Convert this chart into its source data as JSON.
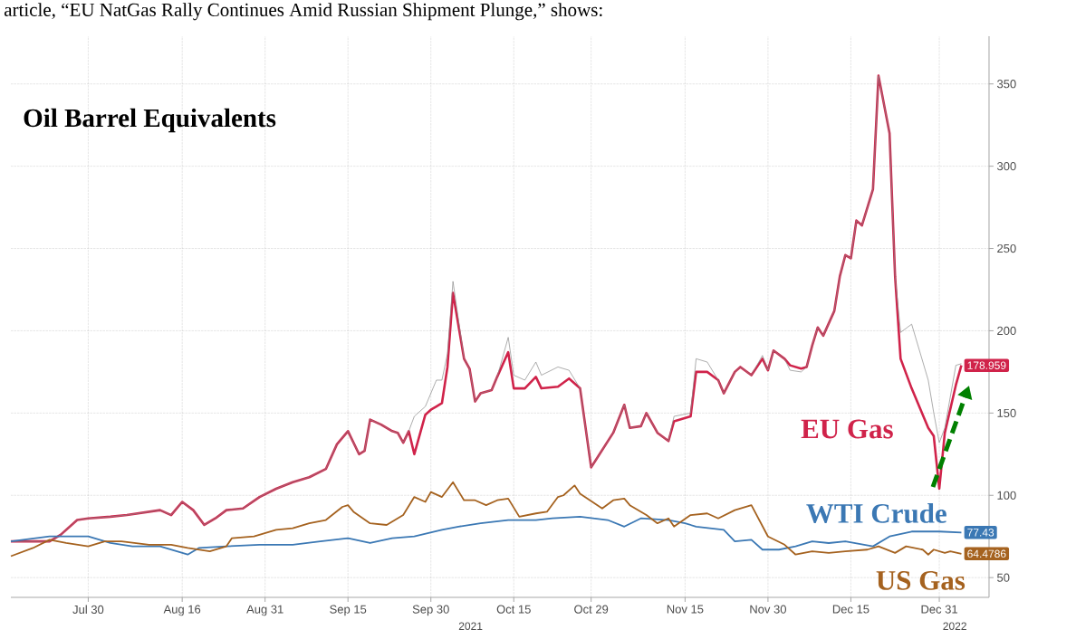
{
  "chart_data": {
    "type": "line",
    "title": "Oil Barrel Equivalents",
    "annotations": [
      "article, “EU NatGas Rally Continues Amid Russian Shipment Plunge,” shows:",
      "2021",
      "2022"
    ],
    "xlim": [
      "2021-07-16",
      "2022-01-09"
    ],
    "xticks": [
      {
        "value": "2021-07-30",
        "label": "Jul 30"
      },
      {
        "value": "2021-08-16",
        "label": "Aug 16"
      },
      {
        "value": "2021-08-31",
        "label": "Aug 31"
      },
      {
        "value": "2021-09-15",
        "label": "Sep 15"
      },
      {
        "value": "2021-09-30",
        "label": "Sep 30"
      },
      {
        "value": "2021-10-15",
        "label": "Oct 15"
      },
      {
        "value": "2021-10-29",
        "label": "Oct 29"
      },
      {
        "value": "2021-11-15",
        "label": "Nov 15"
      },
      {
        "value": "2021-11-30",
        "label": "Nov 30"
      },
      {
        "value": "2021-12-15",
        "label": "Dec 15"
      },
      {
        "value": "2021-12-31",
        "label": "Dec 31"
      }
    ],
    "ylim": [
      38,
      379
    ],
    "yticks": [
      50,
      100,
      150,
      200,
      250,
      300,
      350
    ],
    "grid": true,
    "line_style": "solid",
    "series": [
      {
        "name": "EU Gas",
        "color": "#d0234a",
        "x": [
          "2021-07-16",
          "2021-07-23",
          "2021-07-25",
          "2021-07-28",
          "2021-07-30",
          "2021-08-03",
          "2021-08-06",
          "2021-08-12",
          "2021-08-14",
          "2021-08-16",
          "2021-08-18",
          "2021-08-20",
          "2021-08-22",
          "2021-08-24",
          "2021-08-27",
          "2021-08-30",
          "2021-09-02",
          "2021-09-05",
          "2021-09-08",
          "2021-09-11",
          "2021-09-13",
          "2021-09-15",
          "2021-09-17",
          "2021-09-18",
          "2021-09-19",
          "2021-09-21",
          "2021-09-23",
          "2021-09-24",
          "2021-09-25",
          "2021-09-26",
          "2021-09-27",
          "2021-09-29",
          "2021-09-30",
          "2021-10-01",
          "2021-10-02",
          "2021-10-03",
          "2021-10-04",
          "2021-10-06",
          "2021-10-07",
          "2021-10-08",
          "2021-10-09",
          "2021-10-11",
          "2021-10-12",
          "2021-10-14",
          "2021-10-15",
          "2021-10-17",
          "2021-10-19",
          "2021-10-20",
          "2021-10-23",
          "2021-10-25",
          "2021-10-27",
          "2021-10-29",
          "2021-11-02",
          "2021-11-04",
          "2021-11-05",
          "2021-11-07",
          "2021-11-08",
          "2021-11-10",
          "2021-11-12",
          "2021-11-13",
          "2021-11-16",
          "2021-11-17",
          "2021-11-19",
          "2021-11-21",
          "2021-11-22",
          "2021-11-24",
          "2021-11-25",
          "2021-11-27",
          "2021-11-29",
          "2021-11-30",
          "2021-12-01",
          "2021-12-03",
          "2021-12-04",
          "2021-12-06",
          "2021-12-07",
          "2021-12-08",
          "2021-12-09",
          "2021-12-10",
          "2021-12-12",
          "2021-12-13",
          "2021-12-14",
          "2021-12-15",
          "2021-12-16",
          "2021-12-17",
          "2021-12-19",
          "2021-12-20",
          "2021-12-22",
          "2021-12-23",
          "2021-12-24",
          "2021-12-26",
          "2021-12-29",
          "2021-12-30",
          "2021-12-31",
          "2022-01-01",
          "2022-01-03",
          "2022-01-04"
        ],
        "values": [
          72,
          72,
          76,
          85,
          86,
          87,
          88,
          91,
          88,
          96,
          91,
          82,
          86,
          91,
          92,
          99,
          104,
          108,
          111,
          116,
          131,
          139,
          125,
          127,
          146,
          143,
          139,
          138,
          132,
          139,
          125,
          149,
          152,
          154,
          156,
          178,
          223,
          183,
          177,
          157,
          162,
          164,
          172,
          187,
          165,
          165,
          172,
          165,
          166,
          171,
          165,
          117,
          138,
          155,
          141,
          142,
          150,
          138,
          133,
          145,
          148,
          175,
          175,
          170,
          162,
          175,
          178,
          173,
          183,
          176,
          188,
          183,
          179,
          177,
          178,
          191,
          202,
          197,
          212,
          233,
          246,
          244,
          267,
          264,
          286,
          355,
          320,
          233,
          183,
          165,
          141,
          136,
          104,
          138,
          167,
          178.959
        ],
        "value_labels": [
          null,
          null,
          null,
          null,
          null,
          null,
          null,
          null,
          null,
          null,
          null,
          null,
          null,
          null,
          null,
          null,
          null,
          null,
          null,
          null,
          null,
          null,
          null,
          null,
          null,
          null,
          null,
          null,
          null,
          null,
          null,
          null,
          null,
          null,
          null,
          null,
          null,
          null,
          null,
          null,
          null,
          null,
          null,
          null,
          null,
          null,
          null,
          null,
          null,
          null,
          null,
          null,
          null,
          null,
          null,
          null,
          null,
          null,
          null,
          null,
          null,
          null,
          null,
          null,
          null,
          null,
          null,
          null,
          null,
          null,
          null,
          null,
          null,
          null,
          null,
          null,
          null,
          null,
          null,
          null,
          null,
          null,
          null,
          null,
          null,
          null,
          null,
          null,
          null,
          null,
          null,
          null,
          null,
          null,
          null,
          "178.959"
        ]
      },
      {
        "color": "#8a8a8a",
        "x": [
          "2021-07-16",
          "2021-07-23",
          "2021-07-25",
          "2021-07-28",
          "2021-07-30",
          "2021-08-03",
          "2021-08-06",
          "2021-08-12",
          "2021-08-14",
          "2021-08-16",
          "2021-08-18",
          "2021-08-20",
          "2021-08-22",
          "2021-08-24",
          "2021-08-27",
          "2021-08-30",
          "2021-09-02",
          "2021-09-05",
          "2021-09-08",
          "2021-09-11",
          "2021-09-13",
          "2021-09-15",
          "2021-09-17",
          "2021-09-18",
          "2021-09-19",
          "2021-09-21",
          "2021-09-23",
          "2021-09-24",
          "2021-09-25",
          "2021-09-26",
          "2021-09-27",
          "2021-09-29",
          "2021-09-30",
          "2021-10-01",
          "2021-10-02",
          "2021-10-03",
          "2021-10-04",
          "2021-10-06",
          "2021-10-07",
          "2021-10-08",
          "2021-10-09",
          "2021-10-11",
          "2021-10-12",
          "2021-10-14",
          "2021-10-15",
          "2021-10-17",
          "2021-10-19",
          "2021-10-20",
          "2021-10-23",
          "2021-10-25",
          "2021-10-27",
          "2021-10-29",
          "2021-11-02",
          "2021-11-04",
          "2021-11-05",
          "2021-11-07",
          "2021-11-08",
          "2021-11-10",
          "2021-11-12",
          "2021-11-13",
          "2021-11-16",
          "2021-11-17",
          "2021-11-19",
          "2021-11-21",
          "2021-11-22",
          "2021-11-24",
          "2021-11-25",
          "2021-11-27",
          "2021-11-29",
          "2021-11-30",
          "2021-12-01",
          "2021-12-03",
          "2021-12-04",
          "2021-12-06",
          "2021-12-07",
          "2021-12-08",
          "2021-12-09",
          "2021-12-10",
          "2021-12-12",
          "2021-12-13",
          "2021-12-14",
          "2021-12-15",
          "2021-12-16",
          "2021-12-17",
          "2021-12-19",
          "2021-12-20",
          "2021-12-22",
          "2021-12-23",
          "2021-12-24",
          "2021-12-26",
          "2021-12-29",
          "2021-12-30",
          "2021-12-31",
          "2022-01-01",
          "2022-01-03",
          "2022-01-04"
        ],
        "values": [
          72,
          72,
          76,
          85,
          86,
          87,
          88,
          91,
          88,
          96,
          91,
          82,
          86,
          91,
          92,
          99,
          104,
          108,
          111,
          116,
          131,
          139,
          125,
          127,
          146,
          143,
          139,
          138,
          132,
          139,
          148,
          154,
          162,
          170,
          170,
          186,
          230,
          183,
          177,
          157,
          162,
          164,
          172,
          196,
          173,
          170,
          181,
          173,
          178,
          176,
          165,
          117,
          138,
          155,
          141,
          142,
          150,
          138,
          133,
          148,
          150,
          183,
          181,
          170,
          162,
          175,
          178,
          173,
          185,
          176,
          188,
          183,
          176,
          175,
          178,
          191,
          202,
          197,
          212,
          233,
          246,
          244,
          267,
          264,
          286,
          355,
          320,
          233,
          199,
          204,
          170,
          150,
          132,
          141,
          179,
          180
        ]
      },
      {
        "name": "WTI Crude",
        "color": "#3b78b4",
        "x": [
          "2021-07-16",
          "2021-07-23",
          "2021-07-30",
          "2021-08-03",
          "2021-08-07",
          "2021-08-12",
          "2021-08-17",
          "2021-08-19",
          "2021-08-24",
          "2021-08-30",
          "2021-09-05",
          "2021-09-10",
          "2021-09-15",
          "2021-09-19",
          "2021-09-23",
          "2021-09-27",
          "2021-10-02",
          "2021-10-05",
          "2021-10-09",
          "2021-10-14",
          "2021-10-19",
          "2021-10-22",
          "2021-10-27",
          "2021-11-01",
          "2021-11-04",
          "2021-11-07",
          "2021-11-12",
          "2021-11-15",
          "2021-11-17",
          "2021-11-22",
          "2021-11-24",
          "2021-11-27",
          "2021-11-29",
          "2021-12-02",
          "2021-12-05",
          "2021-12-08",
          "2021-12-11",
          "2021-12-14",
          "2021-12-19",
          "2021-12-22",
          "2021-12-26",
          "2021-12-31",
          "2022-01-04"
        ],
        "values": [
          72,
          75,
          75,
          71,
          69,
          69,
          64,
          68,
          69,
          70,
          70,
          72,
          74,
          71,
          74,
          75,
          79,
          81,
          83,
          85,
          85,
          86,
          87,
          85,
          81,
          86,
          85,
          83,
          81,
          79,
          72,
          73,
          67,
          67,
          69,
          72,
          71,
          72,
          69,
          75,
          78,
          78,
          77.43
        ],
        "value_labels": [
          null,
          null,
          null,
          null,
          null,
          null,
          null,
          null,
          null,
          null,
          null,
          null,
          null,
          null,
          null,
          null,
          null,
          null,
          null,
          null,
          null,
          null,
          null,
          null,
          null,
          null,
          null,
          null,
          null,
          null,
          null,
          null,
          null,
          null,
          null,
          null,
          null,
          null,
          null,
          null,
          null,
          null,
          "77.43"
        ]
      },
      {
        "name": "US Gas",
        "color": "#a5621f",
        "x": [
          "2021-07-16",
          "2021-07-20",
          "2021-07-23",
          "2021-07-26",
          "2021-07-30",
          "2021-08-02",
          "2021-08-05",
          "2021-08-10",
          "2021-08-14",
          "2021-08-17",
          "2021-08-21",
          "2021-08-24",
          "2021-08-25",
          "2021-08-29",
          "2021-09-02",
          "2021-09-05",
          "2021-09-08",
          "2021-09-11",
          "2021-09-14",
          "2021-09-15",
          "2021-09-16",
          "2021-09-19",
          "2021-09-22",
          "2021-09-25",
          "2021-09-27",
          "2021-09-29",
          "2021-09-30",
          "2021-10-02",
          "2021-10-04",
          "2021-10-06",
          "2021-10-08",
          "2021-10-10",
          "2021-10-12",
          "2021-10-14",
          "2021-10-16",
          "2021-10-19",
          "2021-10-21",
          "2021-10-23",
          "2021-10-24",
          "2021-10-26",
          "2021-10-27",
          "2021-10-31",
          "2021-11-02",
          "2021-11-04",
          "2021-11-05",
          "2021-11-08",
          "2021-11-10",
          "2021-11-12",
          "2021-11-13",
          "2021-11-16",
          "2021-11-19",
          "2021-11-21",
          "2021-11-24",
          "2021-11-27",
          "2021-11-30",
          "2021-12-03",
          "2021-12-05",
          "2021-12-08",
          "2021-12-11",
          "2021-12-14",
          "2021-12-18",
          "2021-12-20",
          "2021-12-23",
          "2021-12-25",
          "2021-12-28",
          "2021-12-29",
          "2021-12-30",
          "2022-01-01",
          "2022-01-02",
          "2022-01-04"
        ],
        "values": [
          63,
          68,
          73,
          71,
          69,
          72,
          72,
          70,
          70,
          68,
          66,
          69,
          74,
          75,
          79,
          80,
          83,
          85,
          93,
          94,
          90,
          83,
          82,
          88,
          99,
          96,
          102,
          99,
          108,
          97,
          97,
          94,
          97,
          98,
          87,
          89,
          90,
          99,
          100,
          106,
          101,
          92,
          97,
          98,
          94,
          88,
          83,
          86,
          81,
          88,
          89,
          86,
          91,
          94,
          75,
          70,
          64,
          66,
          65,
          66,
          67,
          69,
          65,
          69,
          67,
          64,
          67,
          65,
          66,
          64.4786
        ],
        "value_labels": [
          null,
          null,
          null,
          null,
          null,
          null,
          null,
          null,
          null,
          null,
          null,
          null,
          null,
          null,
          null,
          null,
          null,
          null,
          null,
          null,
          null,
          null,
          null,
          null,
          null,
          null,
          null,
          null,
          null,
          null,
          null,
          null,
          null,
          null,
          null,
          null,
          null,
          null,
          null,
          null,
          null,
          null,
          null,
          null,
          null,
          null,
          null,
          null,
          null,
          null,
          null,
          null,
          null,
          null,
          null,
          null,
          null,
          null,
          null,
          null,
          null,
          null,
          null,
          null,
          null,
          null,
          null,
          null,
          null,
          "64.4786"
        ]
      }
    ]
  }
}
